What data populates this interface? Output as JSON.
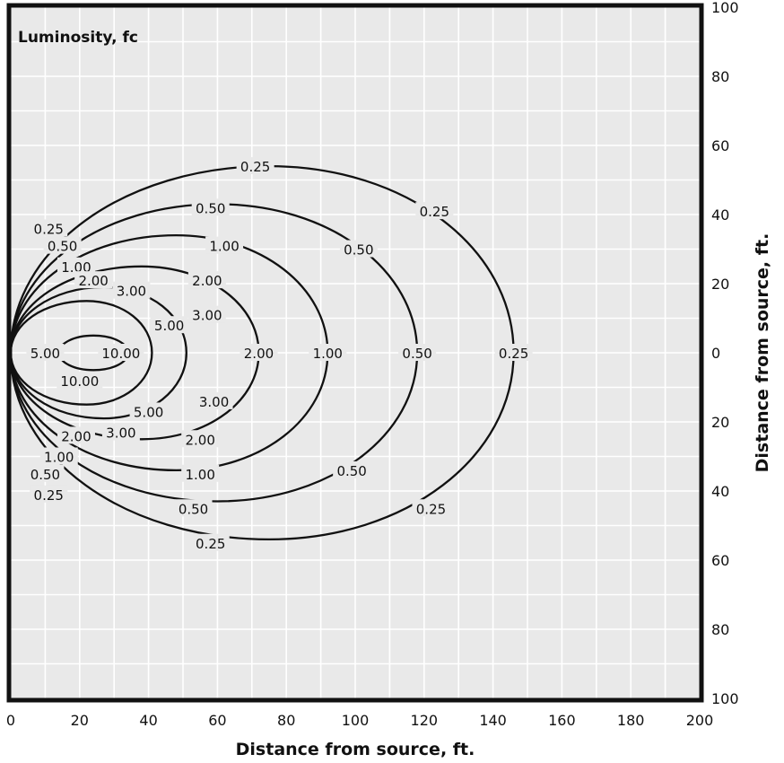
{
  "chart_data": {
    "type": "contour",
    "title": "Luminosity, fc",
    "xlabel": "Distance from source, ft.",
    "ylabel": "Distance from source, ft.",
    "xlim": [
      0,
      200
    ],
    "ylim": [
      -100,
      100
    ],
    "x_ticks": [
      "0",
      "20",
      "40",
      "60",
      "80",
      "100",
      "120",
      "140",
      "160",
      "180",
      "200"
    ],
    "y_ticks": [
      "100",
      "80",
      "60",
      "40",
      "20",
      "0",
      "20",
      "40",
      "60",
      "80",
      "100"
    ],
    "grid": true,
    "colors": {
      "plot_background": "#e9e9e9",
      "grid": "#ffffff",
      "lines": "#111111",
      "frame": "#111111"
    },
    "series": [
      {
        "name": "0.25",
        "source_x": 0,
        "right_x": 146,
        "center_x": 75,
        "half_height": 54
      },
      {
        "name": "0.50",
        "source_x": 0,
        "right_x": 118,
        "center_x": 60,
        "half_height": 43
      },
      {
        "name": "1.00",
        "source_x": 0,
        "right_x": 92,
        "center_x": 48,
        "half_height": 34
      },
      {
        "name": "2.00",
        "source_x": 0,
        "right_x": 72,
        "center_x": 38,
        "half_height": 25
      },
      {
        "name": "3.00",
        "source_x": 0,
        "right_x": 51,
        "center_x": 27,
        "half_height": 19
      },
      {
        "name": "5.00",
        "source_x": 0,
        "right_x": 41,
        "center_x": 22,
        "half_height": 15
      },
      {
        "name": "10.00",
        "source_x": 14,
        "right_x": 34,
        "center_x": 24,
        "half_height": 5
      }
    ],
    "labels": [
      {
        "text": "0.25",
        "x": 71,
        "y": 54
      },
      {
        "text": "0.25",
        "x": 123,
        "y": 41
      },
      {
        "text": "0.25",
        "x": 146,
        "y": 0
      },
      {
        "text": "0.25",
        "x": 122,
        "y": -45
      },
      {
        "text": "0.25",
        "x": 58,
        "y": -55
      },
      {
        "text": "0.25",
        "x": 11,
        "y": 36
      },
      {
        "text": "0.25",
        "x": 11,
        "y": -41
      },
      {
        "text": "0.50",
        "x": 58,
        "y": 42
      },
      {
        "text": "0.50",
        "x": 101,
        "y": 30
      },
      {
        "text": "0.50",
        "x": 118,
        "y": 0
      },
      {
        "text": "0.50",
        "x": 99,
        "y": -34
      },
      {
        "text": "0.50",
        "x": 53,
        "y": -45
      },
      {
        "text": "0.50",
        "x": 15,
        "y": 31
      },
      {
        "text": "0.50",
        "x": 10,
        "y": -35
      },
      {
        "text": "1.00",
        "x": 62,
        "y": 31
      },
      {
        "text": "1.00",
        "x": 92,
        "y": 0
      },
      {
        "text": "1.00",
        "x": 55,
        "y": -35
      },
      {
        "text": "1.00",
        "x": 19,
        "y": 25
      },
      {
        "text": "1.00",
        "x": 14,
        "y": -30
      },
      {
        "text": "2.00",
        "x": 57,
        "y": 21
      },
      {
        "text": "2.00",
        "x": 72,
        "y": 0
      },
      {
        "text": "2.00",
        "x": 55,
        "y": -25
      },
      {
        "text": "2.00",
        "x": 24,
        "y": 21
      },
      {
        "text": "2.00",
        "x": 19,
        "y": -24
      },
      {
        "text": "3.00",
        "x": 35,
        "y": 18
      },
      {
        "text": "3.00",
        "x": 57,
        "y": 11
      },
      {
        "text": "3.00",
        "x": 59,
        "y": -14
      },
      {
        "text": "3.00",
        "x": 32,
        "y": -23
      },
      {
        "text": "5.00",
        "x": 46,
        "y": 8
      },
      {
        "text": "5.00",
        "x": 10,
        "y": 0
      },
      {
        "text": "5.00",
        "x": 40,
        "y": -17
      },
      {
        "text": "10.00",
        "x": 32,
        "y": 0
      },
      {
        "text": "10.00",
        "x": 20,
        "y": -8
      }
    ]
  }
}
